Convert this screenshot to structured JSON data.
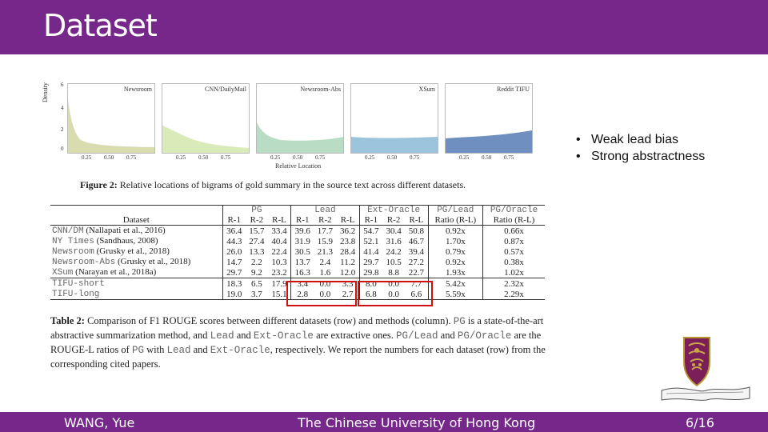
{
  "slide": {
    "title": "Dataset",
    "bullets": [
      "Weak lead bias",
      "Strong abstractness"
    ]
  },
  "footer": {
    "author": "WANG, Yue",
    "institution": "The Chinese University of Hong Kong",
    "page": "6/16"
  },
  "figure": {
    "ylabel": "Density",
    "xlabel": "Relative Location",
    "yticks": [
      "6",
      "4",
      "2",
      "0"
    ],
    "xticks": [
      "0.25",
      "0.50",
      "0.75"
    ],
    "panels": [
      "Newsroom",
      "CNN/DailyMail",
      "Newsroom-Abs",
      "XSum",
      "Reddit TIFU"
    ],
    "caption_label": "Figure 2:",
    "caption_text": "Relative locations of bigrams of gold summary in the source text across different datasets."
  },
  "table": {
    "groups": [
      "PG",
      "Lead",
      "Ext-Oracle",
      "PG/Lead",
      "PG/Oracle"
    ],
    "columns": [
      "Dataset",
      "R-1",
      "R-2",
      "R-L",
      "R-1",
      "R-2",
      "R-L",
      "R-1",
      "R-2",
      "R-L",
      "Ratio (R-L)",
      "Ratio (R-L)"
    ],
    "rows": [
      {
        "name": "CNN/DM",
        "cite": "(Nallapati et al., 2016)",
        "cells": [
          "36.4",
          "15.7",
          "33.4",
          "39.6",
          "17.7",
          "36.2",
          "54.7",
          "30.4",
          "50.8",
          "0.92x",
          "0.66x"
        ]
      },
      {
        "name": "NY Times",
        "cite": "(Sandhaus, 2008)",
        "cells": [
          "44.3",
          "27.4",
          "40.4",
          "31.9",
          "15.9",
          "23.8",
          "52.1",
          "31.6",
          "46.7",
          "1.70x",
          "0.87x"
        ]
      },
      {
        "name": "Newsroom",
        "cite": "(Grusky et al., 2018)",
        "cells": [
          "26.0",
          "13.3",
          "22.4",
          "30.5",
          "21.3",
          "28.4",
          "41.4",
          "24.2",
          "39.4",
          "0.79x",
          "0.57x"
        ]
      },
      {
        "name": "Newsroom-Abs",
        "cite": "(Grusky et al., 2018)",
        "cells": [
          "14.7",
          "2.2",
          "10.3",
          "13.7",
          "2.4",
          "11.2",
          "29.7",
          "10.5",
          "27.2",
          "0.92x",
          "0.38x"
        ]
      },
      {
        "name": "XSum",
        "cite": "(Narayan et al., 2018a)",
        "cells": [
          "29.7",
          "9.2",
          "23.2",
          "16.3",
          "1.6",
          "12.0",
          "29.8",
          "8.8",
          "22.7",
          "1.93x",
          "1.02x"
        ]
      },
      {
        "name": "TIFU-short",
        "cite": "",
        "cells": [
          "18.3",
          "6.5",
          "17.9",
          "3.4",
          "0.0",
          "3.3",
          "8.0",
          "0.0",
          "7.7",
          "5.42x",
          "2.32x"
        ]
      },
      {
        "name": "TIFU-long",
        "cite": "",
        "cells": [
          "19.0",
          "3.7",
          "15.1",
          "2.8",
          "0.0",
          "2.7",
          "6.8",
          "0.0",
          "6.6",
          "5.59x",
          "2.29x"
        ]
      }
    ],
    "caption": [
      {
        "t": "Table 2:",
        "mono": false
      },
      {
        "t": " Comparison of F1 ROUGE scores between different datasets (row) and methods (column). ",
        "mono": false
      },
      {
        "t": "PG",
        "mono": true
      },
      {
        "t": " is a state-of-the-art abstractive summarization method, and ",
        "mono": false
      },
      {
        "t": "Lead",
        "mono": true
      },
      {
        "t": " and ",
        "mono": false
      },
      {
        "t": "Ext-Oracle",
        "mono": true
      },
      {
        "t": " are extractive ones. ",
        "mono": false
      },
      {
        "t": "PG/Lead",
        "mono": true
      },
      {
        "t": " and ",
        "mono": false
      },
      {
        "t": "PG/Oracle",
        "mono": true
      },
      {
        "t": " are the ROUGE-L ratios of ",
        "mono": false
      },
      {
        "t": "PG",
        "mono": true
      },
      {
        "t": " with ",
        "mono": false
      },
      {
        "t": "Lead",
        "mono": true
      },
      {
        "t": " and ",
        "mono": false
      },
      {
        "t": "Ext-Oracle",
        "mono": true
      },
      {
        "t": ", respectively. We report the numbers for each dataset (row) from the corresponding cited papers.",
        "mono": false
      }
    ]
  },
  "colors": {
    "brand_purple": "#76288a",
    "highlight_red": "#d01010"
  },
  "logo": {
    "icon": "cuhk-crest-icon"
  }
}
